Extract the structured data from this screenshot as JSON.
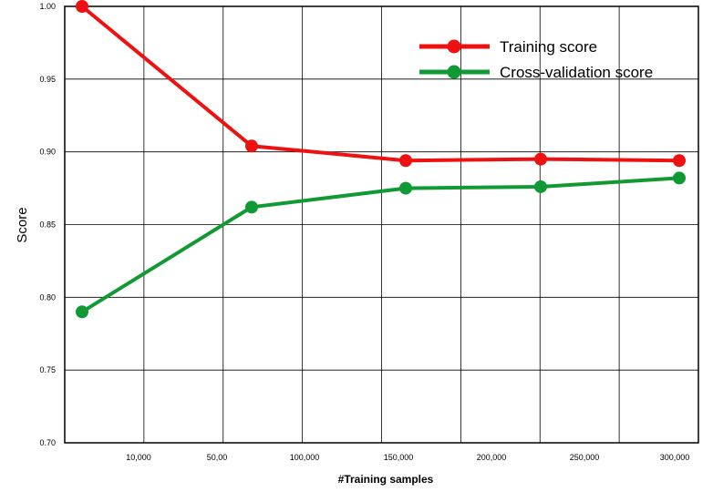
{
  "chart_data": {
    "type": "line",
    "xlabel": "#Training samples",
    "ylabel": "Score",
    "ylim": [
      0.7,
      1.0
    ],
    "yticks": [
      "0.70",
      "0.75",
      "0.80",
      "0.85",
      "0.90",
      "0.95",
      "1.00"
    ],
    "xticks": [
      "10,000",
      "50,00",
      "100,000",
      "150,000",
      "200,000",
      "250,000",
      "300,000"
    ],
    "grid": true,
    "legend_position": "top-right",
    "series": [
      {
        "name": "Training score",
        "color": "#ee1111",
        "points": [
          {
            "x": 6500,
            "y": 1.0
          },
          {
            "x": 68000,
            "y": 0.904
          },
          {
            "x": 153000,
            "y": 0.894
          },
          {
            "x": 225000,
            "y": 0.895
          },
          {
            "x": 300000,
            "y": 0.894
          }
        ]
      },
      {
        "name": "Cross-validation score",
        "color": "#119933",
        "points": [
          {
            "x": 6500,
            "y": 0.79
          },
          {
            "x": 68000,
            "y": 0.862
          },
          {
            "x": 153000,
            "y": 0.875
          },
          {
            "x": 225000,
            "y": 0.876
          },
          {
            "x": 300000,
            "y": 0.882
          }
        ]
      }
    ]
  }
}
